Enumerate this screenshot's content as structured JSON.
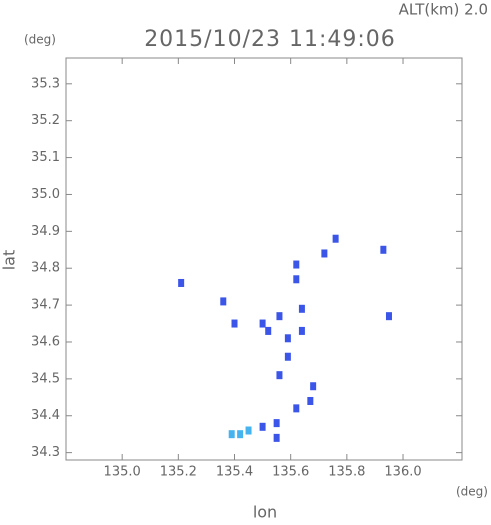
{
  "chart_data": {
    "type": "scatter",
    "header": "ALT(km) 2.0",
    "title": "2015/10/23 11:49:06",
    "y_unit": "(deg)",
    "x_unit": "(deg)",
    "xlabel": "lon",
    "ylabel": "lat",
    "xlim": [
      134.8,
      136.21
    ],
    "ylim": [
      34.28,
      35.37
    ],
    "xticks": [
      {
        "value": 135.0,
        "label": "135.0"
      },
      135.2,
      135.4,
      135.6,
      135.8,
      {
        "value": 136.0,
        "label": "136.0"
      }
    ],
    "yticks": [
      34.3,
      34.4,
      34.5,
      34.6,
      34.7,
      34.8,
      34.9,
      {
        "value": 35.0,
        "label": "35.0"
      },
      35.1,
      35.2,
      35.3
    ],
    "series": [
      {
        "color": "#3a55e8",
        "x": [
          135.21,
          135.36,
          135.4,
          135.5,
          135.52,
          135.56,
          135.64,
          135.64,
          135.62,
          135.62,
          135.72,
          135.76,
          135.93,
          135.95,
          135.59,
          135.59,
          135.56,
          135.68,
          135.67,
          135.62,
          135.55,
          135.5,
          135.55
        ],
        "values": [
          34.76,
          34.71,
          34.65,
          34.65,
          34.63,
          34.67,
          34.69,
          34.63,
          34.81,
          34.77,
          34.84,
          34.88,
          34.85,
          34.67,
          34.61,
          34.56,
          34.51,
          34.48,
          34.44,
          34.42,
          34.34,
          34.37,
          34.38
        ]
      },
      {
        "color": "#45b4ee",
        "x": [
          135.42,
          135.39,
          135.45
        ],
        "values": [
          34.35,
          34.35,
          34.36
        ]
      }
    ]
  }
}
